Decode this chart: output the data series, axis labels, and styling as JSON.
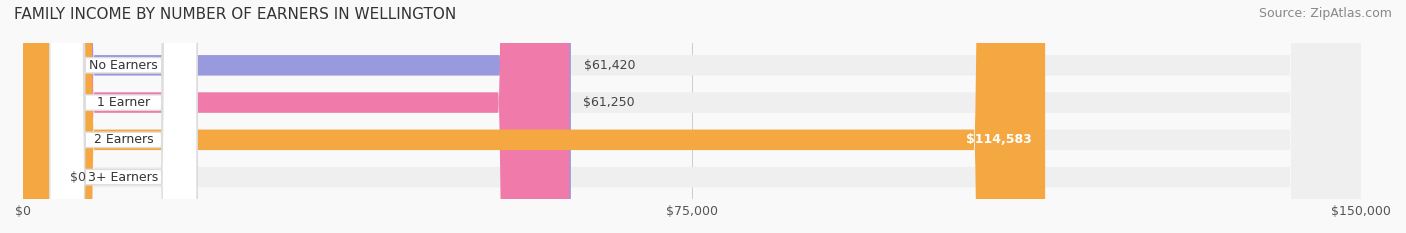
{
  "title": "FAMILY INCOME BY NUMBER OF EARNERS IN WELLINGTON",
  "source": "Source: ZipAtlas.com",
  "categories": [
    "No Earners",
    "1 Earner",
    "2 Earners",
    "3+ Earners"
  ],
  "values": [
    61420,
    61250,
    114583,
    0
  ],
  "value_labels": [
    "$61,420",
    "$61,250",
    "$114,583",
    "$0"
  ],
  "bar_colors": [
    "#9999dd",
    "#f07aaa",
    "#f5a842",
    "#f5a0a0"
  ],
  "bar_bg_color": "#efefef",
  "label_bg_color": "#ffffff",
  "xlim": [
    0,
    150000
  ],
  "xticks": [
    0,
    75000,
    150000
  ],
  "xtick_labels": [
    "$0",
    "$75,000",
    "$150,000"
  ],
  "figsize": [
    14.06,
    2.33
  ],
  "dpi": 100,
  "title_fontsize": 11,
  "source_fontsize": 9,
  "bar_label_fontsize": 9,
  "value_label_fontsize": 9,
  "tick_fontsize": 9,
  "inner_label_threshold": 100000
}
